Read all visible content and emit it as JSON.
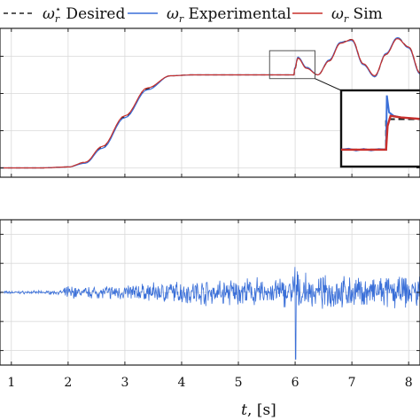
{
  "chart_data": [
    {
      "type": "line",
      "title": "",
      "xlabel": "",
      "ylabel": "",
      "xlim": [
        0.8,
        8.2
      ],
      "ylim": [
        -0.1,
        1.5
      ],
      "grid": true,
      "legend_placement": "top",
      "legend": [
        {
          "label_sym": "ω",
          "label_sub": "r",
          "label_sup": "⋆",
          "label_text": " Desired",
          "style": "dashed",
          "color": "#222222"
        },
        {
          "label_sym": "ω",
          "label_sub": "r",
          "label_sup": "",
          "label_text": " Experimental",
          "style": "solid",
          "color": "#3a6fd8"
        },
        {
          "label_sym": "ω",
          "label_sub": "r",
          "label_sup": "",
          "label_text": " Sim",
          "style": "solid",
          "color": "#c9302c"
        }
      ],
      "series": [
        {
          "key": "desired",
          "color": "#222222",
          "dashed": true,
          "x": [
            0.8,
            1.5,
            2.0,
            2.3,
            2.6,
            3.0,
            3.4,
            3.8,
            4.2,
            4.6,
            5.0,
            5.5,
            5.98,
            5.99,
            6.05,
            6.2,
            6.4,
            6.6,
            6.8,
            7.0,
            7.2,
            7.4,
            7.6,
            7.8,
            8.0,
            8.2
          ],
          "y": [
            0,
            0,
            0.01,
            0.06,
            0.22,
            0.55,
            0.85,
            0.99,
            1.0,
            1.0,
            1.0,
            1.0,
            1.0,
            1.05,
            1.18,
            1.08,
            1.0,
            1.15,
            1.35,
            1.38,
            1.12,
            0.98,
            1.22,
            1.4,
            1.3,
            1.02
          ]
        },
        {
          "key": "experimental",
          "color": "#3a6fd8",
          "dashed": false,
          "x": [
            0.8,
            1.5,
            2.0,
            2.3,
            2.6,
            3.0,
            3.4,
            3.8,
            4.2,
            4.6,
            5.0,
            5.5,
            5.98,
            5.99,
            6.05,
            6.2,
            6.4,
            6.6,
            6.8,
            7.0,
            7.2,
            7.4,
            7.6,
            7.8,
            8.0,
            8.2
          ],
          "y": [
            0,
            0,
            0.01,
            0.05,
            0.21,
            0.54,
            0.84,
            0.99,
            1.0,
            1.0,
            1.0,
            1.0,
            1.0,
            1.07,
            1.19,
            1.08,
            1.0,
            1.16,
            1.35,
            1.37,
            1.11,
            0.98,
            1.23,
            1.4,
            1.29,
            1.01
          ]
        },
        {
          "key": "simulated",
          "color": "#c9302c",
          "dashed": false,
          "x": [
            0.8,
            1.5,
            2.0,
            2.3,
            2.6,
            3.0,
            3.4,
            3.8,
            4.2,
            4.6,
            5.0,
            5.5,
            5.98,
            5.99,
            6.05,
            6.2,
            6.4,
            6.6,
            6.8,
            7.0,
            7.2,
            7.4,
            7.6,
            7.8,
            8.0,
            8.2
          ],
          "y": [
            0,
            0,
            0.01,
            0.06,
            0.23,
            0.56,
            0.86,
            0.99,
            1.0,
            1.0,
            1.0,
            1.0,
            1.0,
            1.06,
            1.18,
            1.07,
            1.0,
            1.15,
            1.34,
            1.38,
            1.12,
            0.99,
            1.22,
            1.39,
            1.3,
            1.02
          ]
        }
      ],
      "zoom_region": {
        "x": [
          5.55,
          6.35
        ],
        "y": [
          0.96,
          1.26
        ]
      },
      "inset_xlim": [
        5.7,
        6.25
      ],
      "inset_ylim": [
        0.9,
        1.35
      ],
      "inset_series": [
        {
          "key": "desired",
          "color": "#222222",
          "dashed": true,
          "x": [
            5.7,
            5.8,
            5.9,
            6.0,
            6.0,
            6.1,
            6.25
          ],
          "y": [
            1.0,
            1.0,
            1.0,
            1.0,
            1.18,
            1.18,
            1.18
          ]
        },
        {
          "key": "experimental",
          "color": "#3a6fd8",
          "dashed": false,
          "x": [
            5.7,
            5.75,
            5.8,
            5.85,
            5.9,
            5.95,
            6.0,
            6.005,
            6.02,
            6.05,
            6.1,
            6.25
          ],
          "y": [
            1.0,
            1.005,
            0.995,
            1.004,
            0.996,
            1.003,
            1.0,
            1.32,
            1.22,
            1.2,
            1.19,
            1.18
          ]
        },
        {
          "key": "simulated",
          "color": "#c9302c",
          "dashed": false,
          "x": [
            5.7,
            5.8,
            5.9,
            6.0,
            6.01,
            6.03,
            6.1,
            6.25
          ],
          "y": [
            1.0,
            1.0,
            1.0,
            1.0,
            1.14,
            1.2,
            1.19,
            1.18
          ]
        }
      ]
    },
    {
      "type": "line",
      "title": "",
      "xlabel_sym": "t",
      "xlabel_rest": ", [s]",
      "ylabel": "",
      "xlim": [
        0.8,
        8.2
      ],
      "ylim": [
        -1.0,
        1.0
      ],
      "grid": true,
      "x_ticks": [
        "1",
        "2",
        "3",
        "4",
        "5",
        "6",
        "7",
        "8"
      ],
      "x_tick_values": [
        1,
        2,
        3,
        4,
        5,
        6,
        7,
        8
      ],
      "series": [
        {
          "key": "error",
          "color": "#3a6fd8",
          "description_of_envelope_x": [
            0.8,
            1.9,
            2.0,
            2.2,
            3.0,
            4.0,
            5.0,
            5.9,
            6.0,
            6.05,
            6.3,
            7.0,
            8.0,
            8.2
          ],
          "envelope_amp": [
            0.02,
            0.03,
            0.12,
            0.08,
            0.12,
            0.18,
            0.22,
            0.24,
            0.45,
            0.3,
            0.25,
            0.24,
            0.26,
            0.26
          ],
          "spike_x": 6.0,
          "spike_min": -0.92,
          "spike_max": 0.35
        }
      ]
    }
  ]
}
